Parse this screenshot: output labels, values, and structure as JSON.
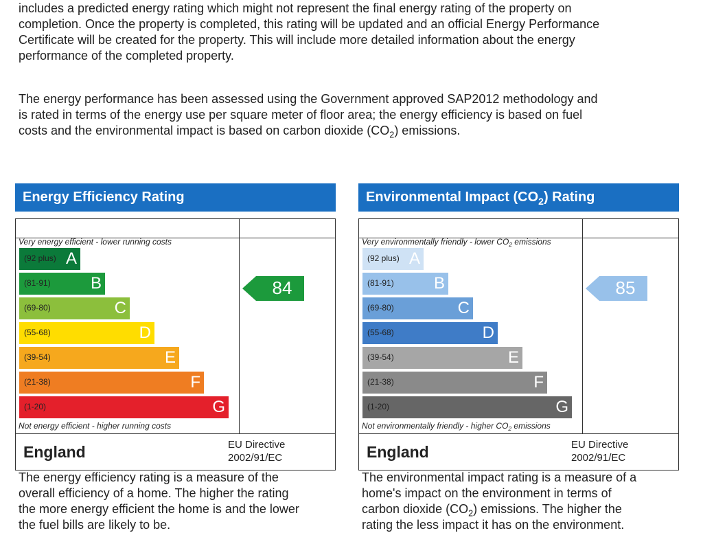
{
  "intro": {
    "lines": [
      "includes a predicted energy rating which might not represent the final energy rating of the property on",
      "completion. Once the property is completed, this rating will be updated and an official Energy Performance",
      "Certificate will be created for the property. This will include more detailed information about the energy",
      "performance of the completed property."
    ]
  },
  "methodology": {
    "lines": [
      "The energy performance has been assessed using the Government approved SAP2012 methodology and",
      "is rated in terms of the energy use per square meter of floor area; the energy efficiency is based on fuel",
      {
        "before": "costs and the environmental impact is based on carbon dioxide (CO",
        "sub": "2",
        "after": ") emissions."
      }
    ]
  },
  "panels": [
    {
      "title": "Energy Efficiency Rating",
      "title_color": "#1a6fc2",
      "top_label": "Very energy efficient - lower running costs",
      "bands": [
        {
          "range": "(92 plus)",
          "letter": "A",
          "color": "#0b7a3a"
        },
        {
          "range": "(81-91)",
          "letter": "B",
          "color": "#1c9a3c"
        },
        {
          "range": "(69-80)",
          "letter": "C",
          "color": "#8cbf3c"
        },
        {
          "range": "(55-68)",
          "letter": "D",
          "color": "#ffdd00"
        },
        {
          "range": "(39-54)",
          "letter": "E",
          "color": "#f6a81d"
        },
        {
          "range": "(21-38)",
          "letter": "F",
          "color": "#ef7d22"
        },
        {
          "range": "(1-20)",
          "letter": "G",
          "color": "#e4202b"
        }
      ],
      "bottom_label": "Not energy efficient - higher running costs",
      "current_rating": 84,
      "arrow_color": "#1c9a3c",
      "region": "England",
      "directive_lines": [
        "EU Directive",
        "2002/91/EC"
      ],
      "description_lines": [
        "The energy efficiency rating is a measure of the",
        "overall efficiency of a home. The higher the rating",
        "the more energy efficient the home is and the lower",
        "the fuel bills are likely to be."
      ]
    },
    {
      "title": {
        "before": "Environmental Impact (CO",
        "sub": "2",
        "after": ") Rating"
      },
      "title_color": "#1a6fc2",
      "top_label": {
        "before": "Very environmentally friendly - lower CO",
        "sub": "2",
        "after": " emissions"
      },
      "bands": [
        {
          "range": "(92 plus)",
          "letter": "A",
          "color": "#cfe2f5"
        },
        {
          "range": "(81-91)",
          "letter": "B",
          "color": "#98c1ea"
        },
        {
          "range": "(69-80)",
          "letter": "C",
          "color": "#6a9fd8"
        },
        {
          "range": "(55-68)",
          "letter": "D",
          "color": "#3f7cc7"
        },
        {
          "range": "(39-54)",
          "letter": "E",
          "color": "#a6a6a6"
        },
        {
          "range": "(21-38)",
          "letter": "F",
          "color": "#8a8a8a"
        },
        {
          "range": "(1-20)",
          "letter": "G",
          "color": "#666666"
        }
      ],
      "bottom_label": {
        "before": "Not environmentally friendly - higher CO",
        "sub": "2",
        "after": " emissions"
      },
      "current_rating": 85,
      "arrow_color": "#98c1ea",
      "region": "England",
      "directive_lines": [
        "EU Directive",
        "2002/91/EC"
      ],
      "description_lines": [
        "The environmental impact rating is a measure of a",
        "home's impact on the environment in terms of",
        {
          "before": "carbon dioxide (CO",
          "sub": "2",
          "after": ") emissions. The higher the"
        },
        "rating the less impact it has on the environment."
      ]
    }
  ]
}
